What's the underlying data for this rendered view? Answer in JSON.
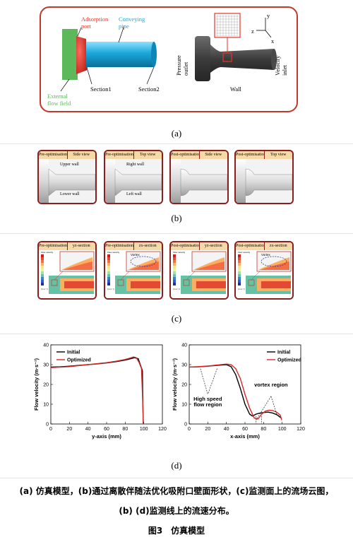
{
  "panel_a": {
    "labels": {
      "adsorption_port": "Adsorption\nport",
      "conveying_pipe": "Conveying\npipe",
      "external_flow_field": "External\nflow field",
      "section1": "Section1",
      "section2": "Section2",
      "pressure_outlet": "Pressure\noutlet",
      "velocity_inlet": "Velocity\ninlet",
      "wall": "Wall",
      "axis_y": "y",
      "axis_z": "z",
      "axis_x": "x"
    },
    "caption": "(a)",
    "colors": {
      "frame": "#c0392b",
      "adsorption": "#e8342b",
      "pipe": "#1aa7d9",
      "external": "#5db85c"
    }
  },
  "panel_b": {
    "caption": "(b)",
    "cards": [
      {
        "left": "Pre-optimisation",
        "right": "Side view",
        "upper": "Upper wall",
        "lower": "Lower wall"
      },
      {
        "left": "Pre-optimisation",
        "right": "Top view",
        "upper": "Right wall",
        "lower": "Left wall"
      },
      {
        "left": "Post-optimisation",
        "right": "Side view",
        "upper": "",
        "lower": ""
      },
      {
        "left": "Post-optimisation",
        "right": "Top view",
        "upper": "",
        "lower": ""
      }
    ]
  },
  "panel_c": {
    "caption": "(c)",
    "cards": [
      {
        "left": "Pre-optimisation",
        "right": "yz-section",
        "vortex": ""
      },
      {
        "left": "Pre-optimisation",
        "right": "zx-section",
        "vortex": "Vortex"
      },
      {
        "left": "Post-optimisation",
        "right": "yz-section",
        "vortex": ""
      },
      {
        "left": "Post-optimisation",
        "right": "zx-section",
        "vortex": "Vortex"
      }
    ],
    "colorbar_title": "Flow velocity",
    "colorbar_unit": "(m·s⁻¹)",
    "colorbar_ticks": [
      "40.000",
      "37.500",
      "35.000",
      "32.500",
      "30.000",
      "27.500",
      "25.000",
      "22.500",
      "20.000",
      "17.500",
      "15.000",
      "12.500",
      "10.000",
      "7.500",
      "5.000",
      "2.500",
      "0.000"
    ]
  },
  "panel_d": {
    "caption": "(d)",
    "left_plot": {
      "xlabel": "y-axis (mm)",
      "ylabel": "Flow velocity (m·s⁻¹)",
      "legend": [
        "Initial",
        "Optimized"
      ]
    },
    "right_plot": {
      "xlabel": "x-axis (mm)",
      "ylabel": "Flow velocity (m·s⁻¹)",
      "legend": [
        "Initial",
        "Optimized"
      ],
      "annotation_high_speed": "High speed\nflow region",
      "annotation_vortex": "vortex region"
    }
  },
  "chart_data": [
    {
      "type": "line",
      "xlabel": "y-axis (mm)",
      "ylabel": "Flow velocity (m·s⁻¹)",
      "xlim": [
        0,
        120
      ],
      "ylim": [
        0,
        40
      ],
      "xticks": [
        0,
        20,
        40,
        60,
        80,
        100,
        120
      ],
      "yticks": [
        0,
        10,
        20,
        30,
        40
      ],
      "legend_position": "top-left",
      "series": [
        {
          "name": "Initial",
          "color": "#000000",
          "x": [
            0,
            10,
            20,
            30,
            40,
            50,
            60,
            70,
            80,
            85,
            90,
            94,
            97,
            98.5,
            99,
            99.5
          ],
          "y": [
            28.8,
            28.9,
            29.2,
            29.6,
            30.0,
            30.4,
            30.9,
            31.5,
            32.3,
            32.9,
            33.5,
            33.0,
            29,
            27,
            10,
            0
          ]
        },
        {
          "name": "Optimized",
          "color": "#d62728",
          "x": [
            0,
            10,
            20,
            30,
            40,
            50,
            60,
            70,
            80,
            85,
            89,
            92,
            95,
            97.5,
            99,
            99.5
          ],
          "y": [
            28.5,
            28.7,
            29.0,
            29.5,
            30.0,
            30.5,
            31.0,
            31.7,
            32.6,
            33.3,
            33.9,
            33.5,
            31,
            28,
            10,
            0
          ]
        }
      ]
    },
    {
      "type": "line",
      "xlabel": "x-axis (mm)",
      "ylabel": "Flow velocity (m·s⁻¹)",
      "xlim": [
        0,
        120
      ],
      "ylim": [
        0,
        40
      ],
      "xticks": [
        0,
        20,
        40,
        60,
        80,
        100,
        120
      ],
      "yticks": [
        0,
        10,
        20,
        30,
        40
      ],
      "legend_position": "top-right",
      "series": [
        {
          "name": "Initial",
          "color": "#000000",
          "x": [
            0,
            10,
            20,
            30,
            40,
            45,
            50,
            55,
            60,
            65,
            68,
            72,
            76,
            80,
            85,
            90,
            95,
            99
          ],
          "y": [
            28.8,
            28.9,
            29.2,
            29.6,
            30.0,
            29.0,
            25,
            18,
            10,
            5,
            4,
            5,
            5.5,
            5.8,
            6,
            5.5,
            4.5,
            3
          ]
        },
        {
          "name": "Optimized",
          "color": "#d62728",
          "x": [
            0,
            10,
            20,
            30,
            40,
            45,
            50,
            55,
            60,
            65,
            70,
            74,
            78,
            82,
            86,
            90,
            94,
            98,
            99.5
          ],
          "y": [
            28.8,
            29.0,
            29.3,
            29.8,
            30.3,
            30.0,
            28,
            23,
            15,
            8,
            3,
            2.5,
            5,
            6.5,
            7,
            6.8,
            6,
            4.5,
            2
          ]
        }
      ]
    }
  ],
  "figure_caption": {
    "line1": "(a) 仿真模型，(b)通过离散伴随法优化吸附口壁面形状，(c)监测面上的流场云图，",
    "line2": "(b) (d)监测线上的流速分布。",
    "title": "图3　仿真模型"
  }
}
